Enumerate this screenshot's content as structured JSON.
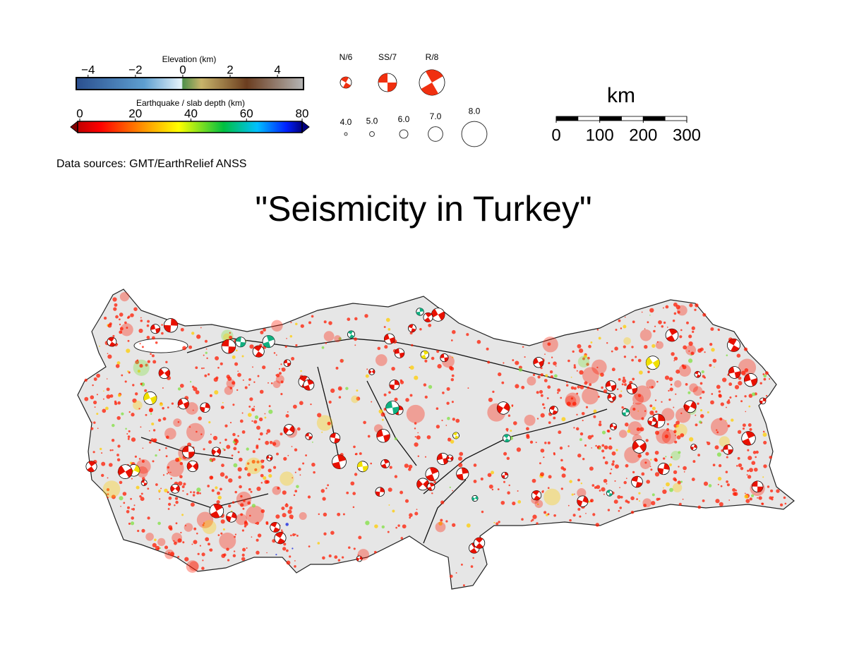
{
  "legend": {
    "elevation": {
      "label": "Elevation (km)",
      "range": [
        -4.5,
        5.1
      ],
      "ticks": [
        {
          "value": -4,
          "label": "−4"
        },
        {
          "value": -2,
          "label": "−2"
        },
        0,
        2,
        4
      ]
    },
    "depth": {
      "label": "Earthquake / slab depth (km)",
      "range": [
        0,
        80
      ],
      "ticks": [
        0,
        20,
        40,
        60,
        80
      ]
    },
    "mechanisms": [
      "N/6",
      "SS/7",
      "R/8"
    ],
    "magnitudes": [
      {
        "value": 4,
        "label": "4.0"
      },
      {
        "value": 5,
        "label": "5.0"
      },
      {
        "value": 6,
        "label": "6.0"
      },
      {
        "value": 7,
        "label": "7.0"
      },
      {
        "value": 8,
        "label": "8.0"
      }
    ],
    "scale": {
      "unit": "km",
      "range": [
        0,
        300
      ],
      "ticks": [
        0,
        100,
        200,
        300
      ]
    },
    "source": "Data sources: GMT/EarthRelief ANSS"
  },
  "title": "\"Seismicity in Turkey\""
}
